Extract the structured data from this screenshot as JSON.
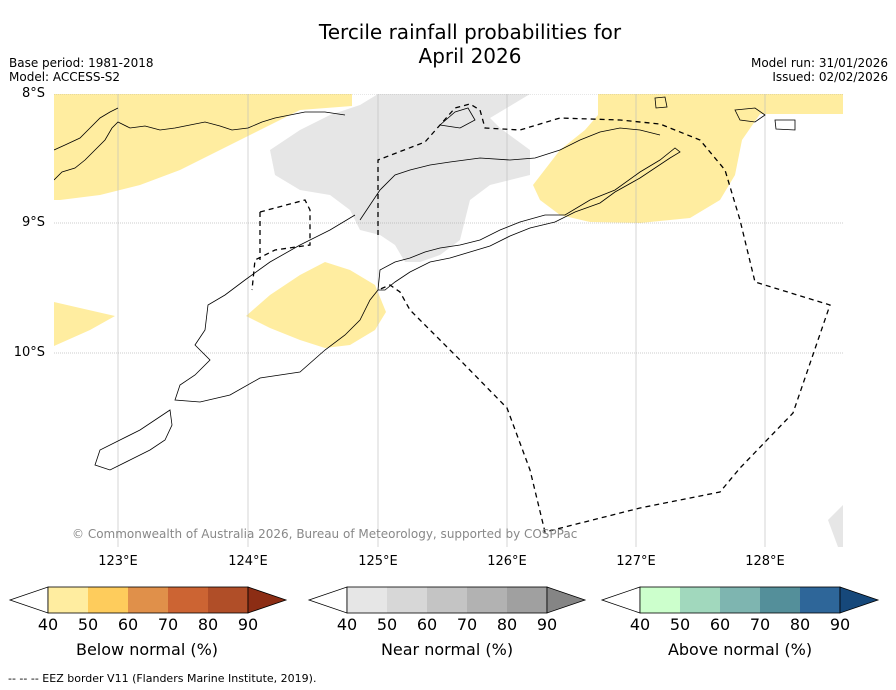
{
  "title_line1": "Tercile rainfall probabilities for",
  "title_line2": "April 2026",
  "meta_left": {
    "base_period": "Base period: 1981-2018",
    "model": "Model: ACCESS-S2"
  },
  "meta_right": {
    "model_run": "Model run: 31/01/2026",
    "issued": "Issued: 02/02/2026"
  },
  "latitude_labels": [
    "8°S",
    "9°S",
    "10°S"
  ],
  "longitude_labels": [
    "123°E",
    "124°E",
    "125°E",
    "126°E",
    "127°E",
    "128°E"
  ],
  "copyright": "© Commonwealth of Australia 2026, Bureau of Meteorology, supported by COSPPac",
  "colorbars": [
    {
      "label": "Below normal (%)",
      "ticks": [
        "40",
        "50",
        "60",
        "70",
        "80",
        "90"
      ],
      "colors": [
        "#ffffff",
        "#ffeda0",
        "#fecc5c",
        "#e0904a",
        "#cc6433",
        "#b04e28",
        "#8c2d14"
      ]
    },
    {
      "label": "Near normal (%)",
      "ticks": [
        "40",
        "50",
        "60",
        "70",
        "80",
        "90"
      ],
      "colors": [
        "#ffffff",
        "#e6e6e6",
        "#d7d7d7",
        "#c4c4c4",
        "#b2b2b2",
        "#a0a0a0",
        "#858585"
      ]
    },
    {
      "label": "Above normal (%)",
      "ticks": [
        "40",
        "50",
        "60",
        "70",
        "80",
        "90"
      ],
      "colors": [
        "#ffffff",
        "#ccffcc",
        "#a1d8bd",
        "#7eb5b0",
        "#548f9a",
        "#2e6699",
        "#16487a"
      ]
    }
  ],
  "colors": {
    "below_normal_40_50": "#ffeda0",
    "near_normal_40_50": "#e6e6e6"
  },
  "footnote": "--  --  -- EEZ border V11 (Flanders Marine Institute, 2019)."
}
